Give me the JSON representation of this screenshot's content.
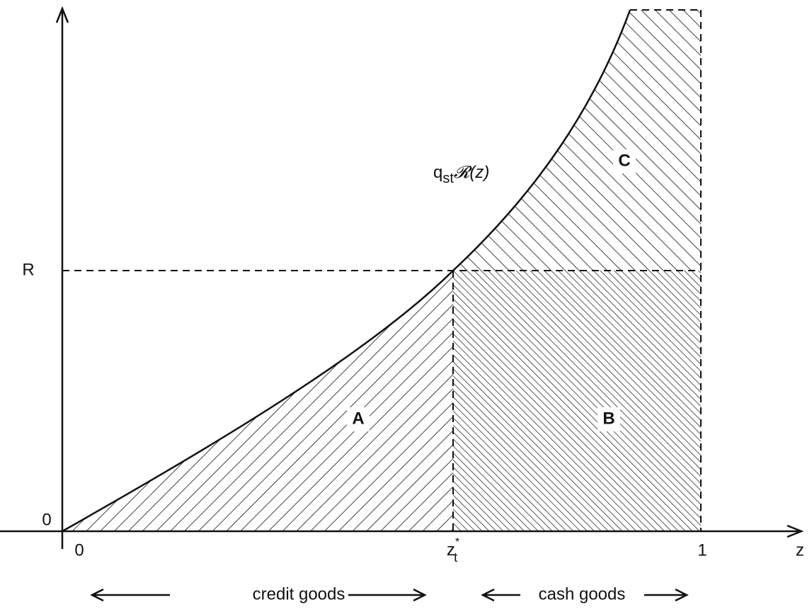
{
  "axes": {
    "y_level": "R",
    "y_origin": "0",
    "x_origin": "0",
    "z_star": "z",
    "z_star_sup": "*",
    "z_star_sub": "t",
    "x_end": "1",
    "x_axis_label": "z"
  },
  "curve_label": {
    "q": "q",
    "sub": "st",
    "func": "𝓡(z)"
  },
  "regions": [
    "A",
    "B",
    "C"
  ],
  "ranges": [
    "credit goods",
    "cash goods"
  ]
}
